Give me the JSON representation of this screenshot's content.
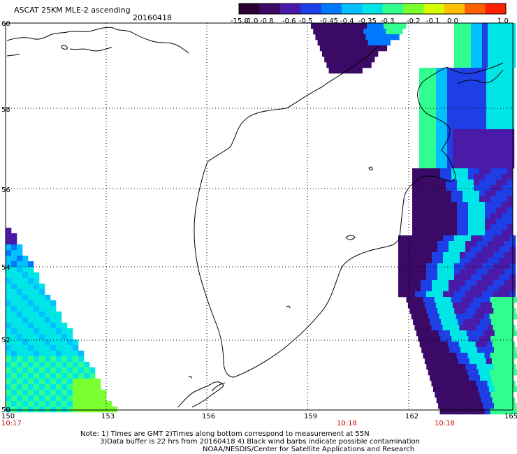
{
  "header": {
    "title": "ASCAT 25KM MLE-2 ascending",
    "date": "20160418"
  },
  "colorbar": {
    "labels": [
      "-15.0",
      "-1.0",
      "-0.8",
      "-0.6",
      "-0.5",
      "-0.45",
      "-0.4",
      "-0.35",
      "-0.3",
      "-0.2",
      "-0.1",
      "0.0",
      "1.0"
    ],
    "colors": [
      "#2a0030",
      "#3a0a66",
      "#4a1aa8",
      "#1f3fe6",
      "#0078ff",
      "#00c0ff",
      "#00e6e6",
      "#30ff90",
      "#7aff30",
      "#d8ff00",
      "#ffc000",
      "#ff6000",
      "#ff2000"
    ]
  },
  "map": {
    "lat_labels": [
      "60",
      "58",
      "56",
      "54",
      "52",
      "50"
    ],
    "lon_labels": [
      "150",
      "153",
      "156",
      "159",
      "162",
      "165"
    ],
    "time_labels": [
      "10:17",
      "10:18",
      "10:18"
    ],
    "land_color": "#ffffff",
    "coast_color": "#000000"
  },
  "notes": {
    "line1": "Note: 1) Times are GMT 2)Times along bottom correspond to measurement at 55N",
    "line2": "3)Data buffer is 22 hrs from 20160418 4) Black wind barbs indicate possible contamination",
    "line3": "NOAA/NESDIS/Center for Satellite Applications and Research"
  }
}
